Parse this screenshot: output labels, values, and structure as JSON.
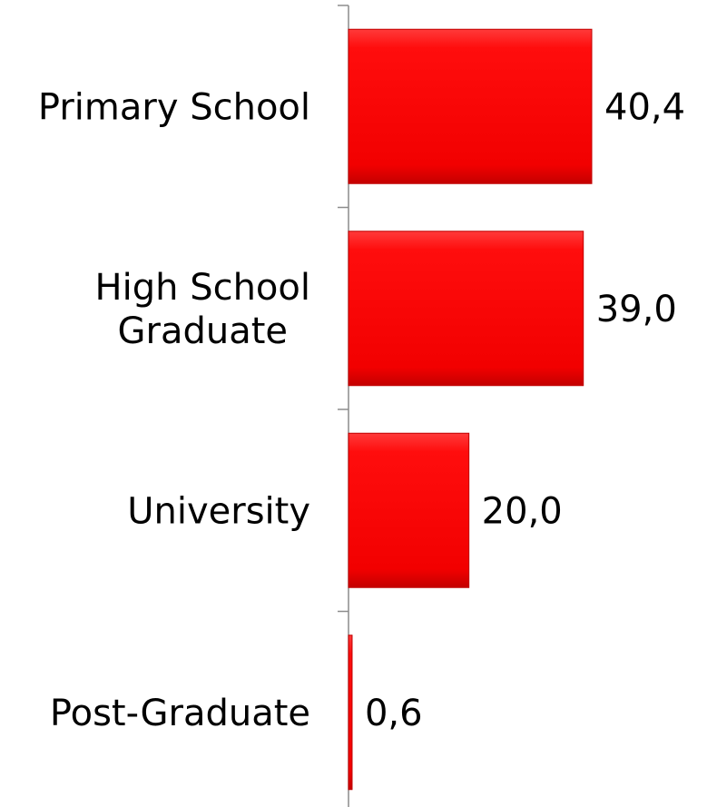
{
  "chart_data": {
    "type": "bar",
    "orientation": "horizontal",
    "categories": [
      [
        "Primary School"
      ],
      [
        "High School",
        "Graduate"
      ],
      [
        "University"
      ],
      [
        "Post-Graduate"
      ]
    ],
    "values": [
      40.4,
      39.0,
      20.0,
      0.6
    ],
    "value_labels": [
      "40,4",
      "39,0",
      "20,0",
      "0,6"
    ],
    "xlim": [
      0,
      40.4
    ],
    "title": "",
    "xlabel": "",
    "ylabel": "",
    "grid": false,
    "legend": "none",
    "bar_color": "#ff0000",
    "bar_edge_color": "#c00000"
  }
}
